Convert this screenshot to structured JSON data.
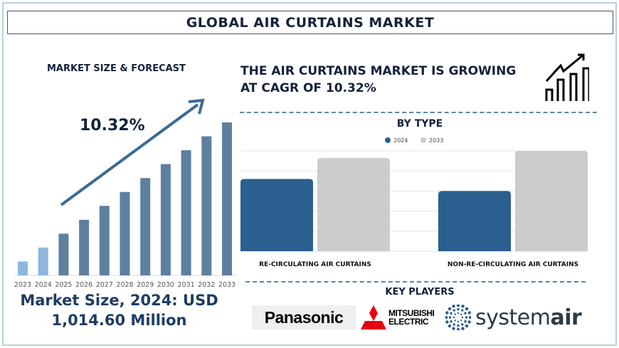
{
  "header": {
    "title": "GLOBAL AIR CURTAINS MARKET"
  },
  "left": {
    "heading": "MARKET SIZE & FORECAST",
    "cagr_label": "10.32%",
    "market_size_line1": "Market Size, 2024: USD",
    "market_size_line2": "1,014.60 Million"
  },
  "right": {
    "headline_line1": "THE AIR CURTAINS MARKET IS GROWING",
    "headline_line2": "AT CAGR OF 10.32%",
    "icon": "growth-chart-icon",
    "key_players_heading": "KEY PLAYERS",
    "key_players": [
      {
        "name": "Panasonic"
      },
      {
        "name": "MITSUBISHI ELECTRIC",
        "line1": "MITSUBISHI",
        "line2": "ELECTRIC"
      },
      {
        "name": "systemair",
        "part1": "system",
        "part2": "air"
      }
    ]
  },
  "chart_data": [
    {
      "type": "bar",
      "title": "MARKET SIZE & FORECAST",
      "categories": [
        "2023",
        "2024",
        "2025",
        "2026",
        "2027",
        "2028",
        "2029",
        "2030",
        "2031",
        "2032",
        "2033"
      ],
      "values": [
        1,
        2,
        3,
        4,
        5,
        6,
        7,
        8,
        9,
        10,
        11
      ],
      "annotation": "10.32%",
      "colors": {
        "historic": "#8db6df",
        "forecast": "#5e80a0"
      }
    },
    {
      "type": "bar",
      "title": "BY TYPE",
      "categories": [
        "RE-CIRCULATING AIR CURTAINS",
        "NON-RE-CIRCULATING AIR CURTAINS"
      ],
      "series": [
        {
          "name": "2024",
          "values": [
            3.6,
            3.0
          ],
          "color": "#2a5f8f"
        },
        {
          "name": "2033",
          "values": [
            4.65,
            5.0
          ],
          "color": "#cccccc"
        }
      ],
      "ylim": [
        0,
        5
      ],
      "grid": true,
      "legend": "top-center"
    }
  ]
}
